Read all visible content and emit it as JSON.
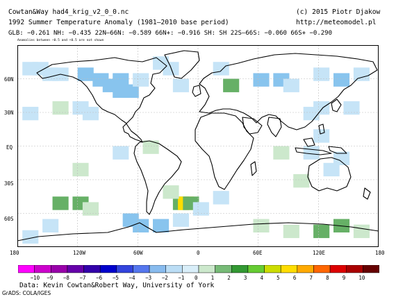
{
  "header": {
    "title_left": "Cowtan&Way had4_krig_v2_0_0.nc",
    "title_right": "(c) 2015 Piotr Djakow",
    "subtitle_left": "1992 Summer Temperature Anomaly (1981–2010 base period)",
    "subtitle_right": "http://meteomodel.pl",
    "stats": "GLB: −0.261 NH: −0.435 22N–66N: −0.589 66N+: −0.916 SH: SH 22S–66S: −0.060 66S+ −0.290",
    "note": "Anomalies between −0.5 and +0.5 are not shown"
  },
  "map": {
    "lat_labels": [
      "60N",
      "30N",
      "EQ",
      "30S",
      "60S"
    ],
    "lon_labels": [
      "180",
      "120W",
      "60W",
      "0",
      "60E",
      "120E",
      "180"
    ],
    "lat_range": [
      -90,
      90
    ],
    "lon_range": [
      -180,
      180
    ],
    "grid_lines": true
  },
  "colorbar": {
    "labels": [
      "−10",
      "−9",
      "−8",
      "−7",
      "−6",
      "−5",
      "−4",
      "−3",
      "−2",
      "−1",
      "0",
      "1",
      "2",
      "3",
      "4",
      "5",
      "6",
      "7",
      "8",
      "9",
      "10"
    ],
    "colors": [
      "#ff00ff",
      "#cc00cc",
      "#9900aa",
      "#6600aa",
      "#3300aa",
      "#0000cc",
      "#3344dd",
      "#5577ee",
      "#88bbee",
      "#bbddf5",
      "#d9eef9",
      "#cce8cc",
      "#77bb77",
      "#339933",
      "#66cc33",
      "#ccdd00",
      "#ffdd00",
      "#ffaa00",
      "#ff6600",
      "#dd0000",
      "#aa0000",
      "#660000"
    ]
  },
  "footer": {
    "credit": "Data: Kevin Cowtan&Robert Way, University of York",
    "grads": "GrADS: COLA/IGES"
  },
  "chart_data": {
    "type": "heatmap",
    "variable": "Summer Temperature Anomaly",
    "year": 1992,
    "cells": [
      {
        "lon": -170,
        "lat": 70,
        "v": -1.0
      },
      {
        "lon": -160,
        "lat": 70,
        "v": -1.0
      },
      {
        "lon": -150,
        "lat": 65,
        "v": -1.0
      },
      {
        "lon": -140,
        "lat": 65,
        "v": -1.0
      },
      {
        "lon": -115,
        "lat": 65,
        "v": -1.5
      },
      {
        "lon": -100,
        "lat": 60,
        "v": -2.0
      },
      {
        "lon": -90,
        "lat": 55,
        "v": -2.0
      },
      {
        "lon": -80,
        "lat": 50,
        "v": -2.0
      },
      {
        "lon": -80,
        "lat": 60,
        "v": -1.5
      },
      {
        "lon": -70,
        "lat": 50,
        "v": -1.5
      },
      {
        "lon": -60,
        "lat": 60,
        "v": -1.0
      },
      {
        "lon": -40,
        "lat": 75,
        "v": -1.0
      },
      {
        "lon": -30,
        "lat": 70,
        "v": -1.0
      },
      {
        "lon": -20,
        "lat": 55,
        "v": -1.0
      },
      {
        "lon": 20,
        "lat": 70,
        "v": -1.0
      },
      {
        "lon": 30,
        "lat": 55,
        "v": 1.5
      },
      {
        "lon": 60,
        "lat": 60,
        "v": -1.5
      },
      {
        "lon": 80,
        "lat": 60,
        "v": -1.5
      },
      {
        "lon": 90,
        "lat": 55,
        "v": -1.0
      },
      {
        "lon": 120,
        "lat": 65,
        "v": -1.0
      },
      {
        "lon": 140,
        "lat": 60,
        "v": -1.5
      },
      {
        "lon": 160,
        "lat": 65,
        "v": -1.0
      },
      {
        "lon": 120,
        "lat": 35,
        "v": -1.0
      },
      {
        "lon": 110,
        "lat": 30,
        "v": -1.0
      },
      {
        "lon": 150,
        "lat": 35,
        "v": -1.0
      },
      {
        "lon": -170,
        "lat": 30,
        "v": -1.0
      },
      {
        "lon": -120,
        "lat": 35,
        "v": -1.0
      },
      {
        "lon": -110,
        "lat": 30,
        "v": -1.0
      },
      {
        "lon": -140,
        "lat": 35,
        "v": 1.0
      },
      {
        "lon": 120,
        "lat": 10,
        "v": -1.0
      },
      {
        "lon": 110,
        "lat": -5,
        "v": -1.0
      },
      {
        "lon": 140,
        "lat": -10,
        "v": -1.0
      },
      {
        "lon": 130,
        "lat": -20,
        "v": -1.0
      },
      {
        "lon": 80,
        "lat": -5,
        "v": 1.0
      },
      {
        "lon": 100,
        "lat": -30,
        "v": 1.0
      },
      {
        "lon": -120,
        "lat": -50,
        "v": 1.5
      },
      {
        "lon": -140,
        "lat": -50,
        "v": 1.5
      },
      {
        "lon": -110,
        "lat": -55,
        "v": 1.0
      },
      {
        "lon": -20,
        "lat": -50,
        "v": 2.0
      },
      {
        "lon": -15,
        "lat": -50,
        "v": 4.0
      },
      {
        "lon": -10,
        "lat": -50,
        "v": 2.0
      },
      {
        "lon": -30,
        "lat": -40,
        "v": 1.0
      },
      {
        "lon": 0,
        "lat": -55,
        "v": -1.0
      },
      {
        "lon": 20,
        "lat": -45,
        "v": -1.0
      },
      {
        "lon": -70,
        "lat": -65,
        "v": -2.0
      },
      {
        "lon": -60,
        "lat": -70,
        "v": -2.0
      },
      {
        "lon": -40,
        "lat": -70,
        "v": -1.5
      },
      {
        "lon": -20,
        "lat": -65,
        "v": -1.0
      },
      {
        "lon": 60,
        "lat": -70,
        "v": 1.0
      },
      {
        "lon": 90,
        "lat": -75,
        "v": 1.0
      },
      {
        "lon": 120,
        "lat": -75,
        "v": 1.5
      },
      {
        "lon": 140,
        "lat": -70,
        "v": 1.5
      },
      {
        "lon": 160,
        "lat": -75,
        "v": 1.0
      },
      {
        "lon": -150,
        "lat": -70,
        "v": -1.0
      },
      {
        "lon": -170,
        "lat": -80,
        "v": -1.0
      },
      {
        "lon": -50,
        "lat": 0,
        "v": 1.0
      },
      {
        "lon": -80,
        "lat": -5,
        "v": -1.0
      },
      {
        "lon": -120,
        "lat": -20,
        "v": 1.0
      }
    ]
  }
}
